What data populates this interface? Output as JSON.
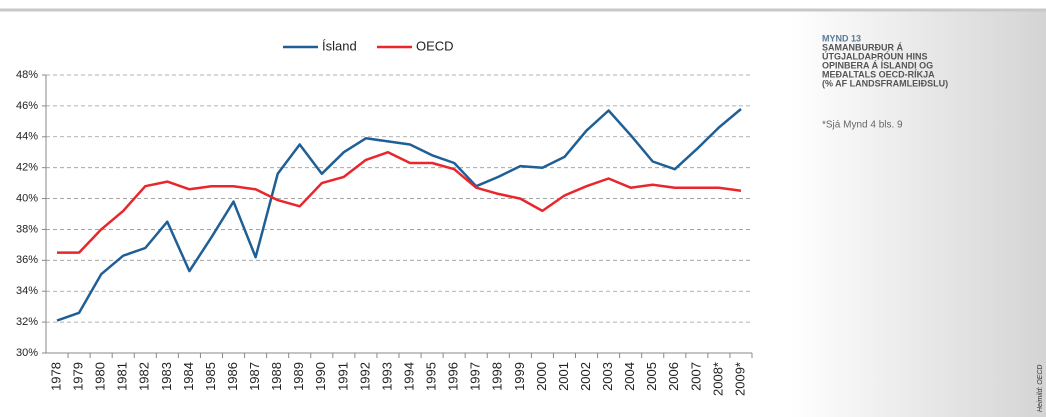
{
  "chart_data": {
    "type": "line",
    "categories": [
      "1978",
      "1979",
      "1980",
      "1981",
      "1982",
      "1983",
      "1984",
      "1985",
      "1986",
      "1987",
      "1988",
      "1989",
      "1990",
      "1991",
      "1992",
      "1993",
      "1994",
      "1995",
      "1996",
      "1997",
      "1998",
      "1999",
      "2000",
      "2001",
      "2002",
      "2003",
      "2004",
      "2005",
      "2006",
      "2007",
      "2008*",
      "2009*"
    ],
    "series": [
      {
        "name": "Ísland",
        "color": "#1f5f96",
        "values": [
          32.1,
          32.6,
          35.1,
          36.3,
          36.8,
          38.5,
          35.3,
          37.5,
          39.8,
          36.2,
          41.6,
          43.5,
          41.6,
          43.0,
          43.9,
          43.7,
          43.5,
          42.8,
          42.3,
          40.8,
          41.4,
          42.1,
          42.0,
          42.7,
          44.4,
          45.7,
          44.1,
          42.4,
          41.9,
          43.2,
          44.6,
          45.8
        ]
      },
      {
        "name": "OECD",
        "color": "#e8262b",
        "values": [
          36.5,
          36.5,
          38.0,
          39.2,
          40.8,
          41.1,
          40.6,
          40.8,
          40.8,
          40.6,
          39.9,
          39.5,
          41.0,
          41.4,
          42.5,
          43.0,
          42.3,
          42.3,
          41.9,
          40.7,
          40.3,
          40.0,
          39.2,
          40.2,
          40.8,
          41.3,
          40.7,
          40.9,
          40.7,
          40.7,
          40.7,
          40.5
        ]
      }
    ],
    "ylim": [
      30,
      48
    ],
    "yticks": [
      {
        "value": 30,
        "label": "30%"
      },
      {
        "value": 32,
        "label": "32%"
      },
      {
        "value": 34,
        "label": "34%"
      },
      {
        "value": 36,
        "label": "36%"
      },
      {
        "value": 38,
        "label": "38%"
      },
      {
        "value": 40,
        "label": "40%"
      },
      {
        "value": 42,
        "label": "42%"
      },
      {
        "value": 44,
        "label": "44%"
      },
      {
        "value": 46,
        "label": "46%"
      },
      {
        "value": 48,
        "label": "48%"
      }
    ],
    "grid": true,
    "legend": "top"
  },
  "panel": {
    "label": "MYND 13",
    "title_lines": [
      "SAMANBURÐUR Á",
      "ÚTGJALDAÞRÓUN HINS",
      "OPINBERA Á ÍSLANDI OG",
      "MEÐALTALS OECD-RÍKJA",
      "(% AF LANDSFRAMLEIÐSLU)"
    ],
    "note": "*Sjá Mynd 4 bls. 9",
    "source": "Heimild: OECD"
  }
}
